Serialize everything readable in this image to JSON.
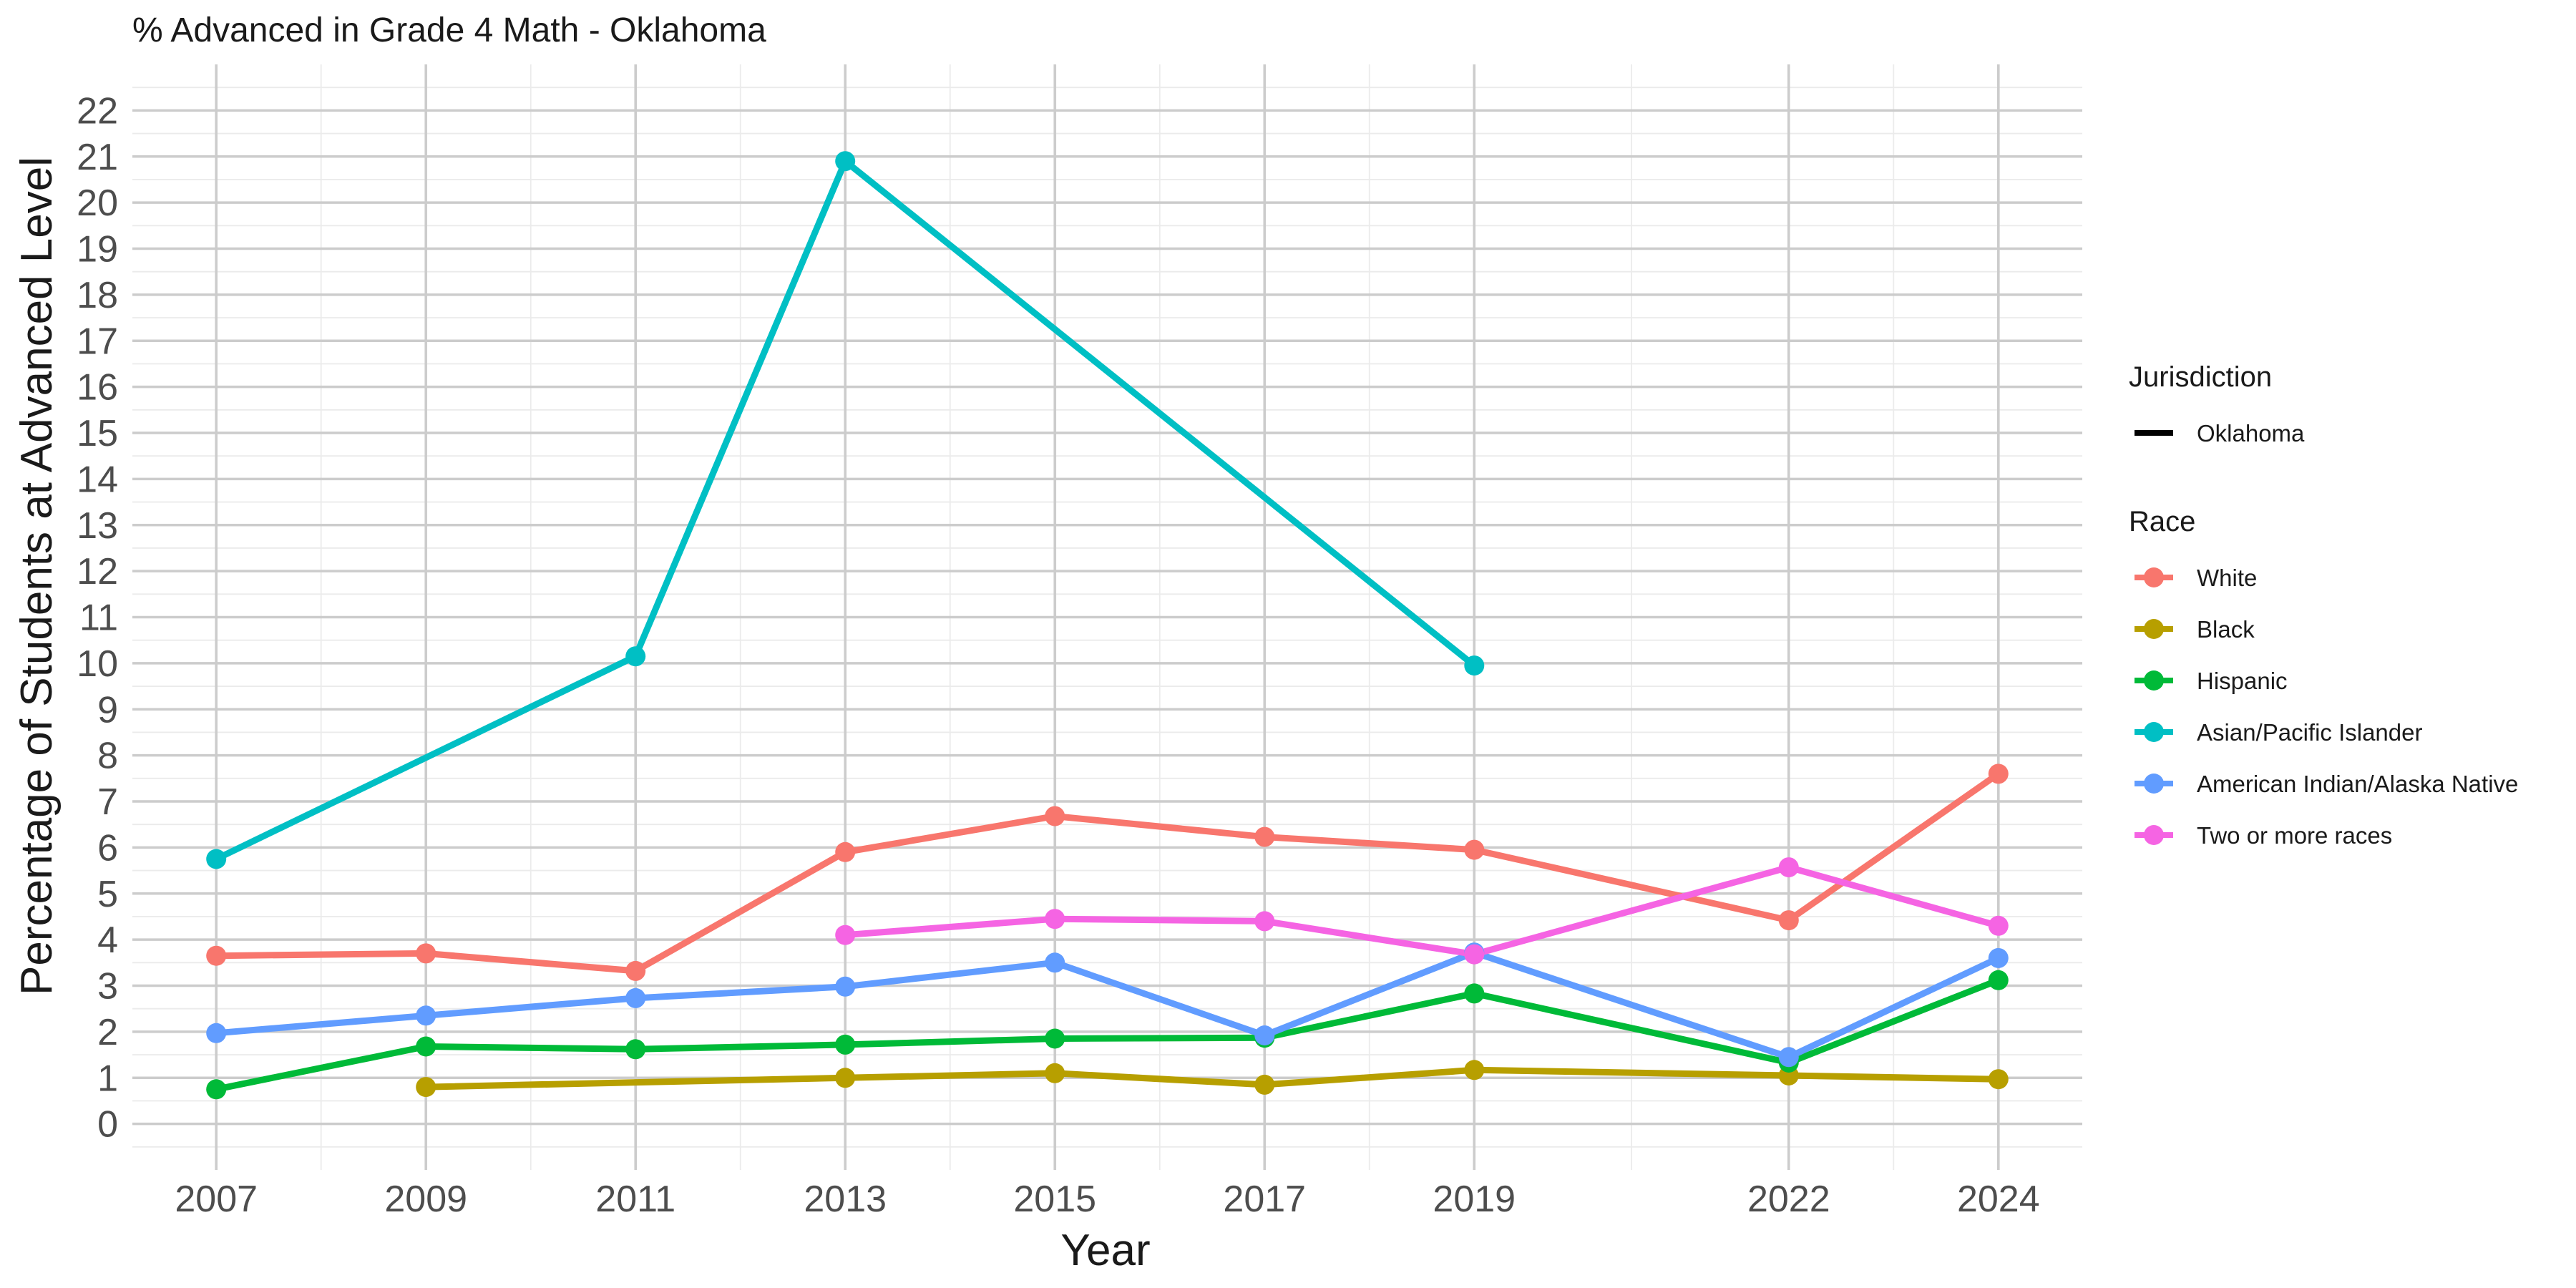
{
  "chart_data": {
    "type": "line",
    "title": "% Advanced in Grade 4 Math - Oklahoma",
    "xlabel": "Year",
    "ylabel": "Percentage of Students at Advanced Level",
    "x": [
      2007,
      2009,
      2011,
      2013,
      2015,
      2017,
      2019,
      2022,
      2024
    ],
    "xlim": [
      2006.2,
      2024.8
    ],
    "ylim": [
      -1.0,
      23.0
    ],
    "y_ticks": [
      0,
      1,
      2,
      3,
      4,
      5,
      6,
      7,
      8,
      9,
      10,
      11,
      12,
      13,
      14,
      15,
      16,
      17,
      18,
      19,
      20,
      21,
      22
    ],
    "x_ticks": [
      2007,
      2009,
      2011,
      2013,
      2015,
      2017,
      2019,
      2022,
      2024
    ],
    "grid": true,
    "legend_position": "right",
    "legends": [
      {
        "title": "Jurisdiction",
        "entries": [
          {
            "label": "Oklahoma",
            "color": "#000000",
            "kind": "line"
          }
        ]
      },
      {
        "title": "Race",
        "entries": [
          {
            "label": "White",
            "color": "#F8766D",
            "kind": "line-point"
          },
          {
            "label": "Black",
            "color": "#B79F00",
            "kind": "line-point"
          },
          {
            "label": "Hispanic",
            "color": "#00BA38",
            "kind": "line-point"
          },
          {
            "label": "Asian/Pacific Islander",
            "color": "#00BFC4",
            "kind": "line-point"
          },
          {
            "label": "American Indian/Alaska Native",
            "color": "#619CFF",
            "kind": "line-point"
          },
          {
            "label": "Two or more races",
            "color": "#F564E3",
            "kind": "line-point"
          }
        ]
      }
    ],
    "series": [
      {
        "name": "White",
        "color": "#F8766D",
        "points": [
          [
            2007,
            3.65
          ],
          [
            2009,
            3.7
          ],
          [
            2011,
            3.32
          ],
          [
            2013,
            5.9
          ],
          [
            2015,
            6.68
          ],
          [
            2017,
            6.23
          ],
          [
            2019,
            5.95
          ],
          [
            2022,
            4.42
          ],
          [
            2024,
            7.6
          ]
        ]
      },
      {
        "name": "Black",
        "color": "#B79F00",
        "points": [
          [
            2009,
            0.8
          ],
          [
            2013,
            1.0
          ],
          [
            2015,
            1.1
          ],
          [
            2017,
            0.85
          ],
          [
            2019,
            1.17
          ],
          [
            2022,
            1.05
          ],
          [
            2024,
            0.97
          ]
        ]
      },
      {
        "name": "Hispanic",
        "color": "#00BA38",
        "points": [
          [
            2007,
            0.75
          ],
          [
            2009,
            1.68
          ],
          [
            2011,
            1.62
          ],
          [
            2013,
            1.72
          ],
          [
            2015,
            1.85
          ],
          [
            2017,
            1.87
          ],
          [
            2019,
            2.83
          ],
          [
            2022,
            1.33
          ],
          [
            2024,
            3.12
          ]
        ]
      },
      {
        "name": "Asian/Pacific Islander",
        "color": "#00BFC4",
        "points": [
          [
            2007,
            5.75
          ],
          [
            2011,
            10.15
          ],
          [
            2013,
            20.9
          ],
          [
            2019,
            9.95
          ]
        ]
      },
      {
        "name": "American Indian/Alaska Native",
        "color": "#619CFF",
        "points": [
          [
            2007,
            1.97
          ],
          [
            2009,
            2.35
          ],
          [
            2011,
            2.73
          ],
          [
            2013,
            2.98
          ],
          [
            2015,
            3.5
          ],
          [
            2017,
            1.92
          ],
          [
            2019,
            3.72
          ],
          [
            2022,
            1.45
          ],
          [
            2024,
            3.6
          ]
        ]
      },
      {
        "name": "Two or more races",
        "color": "#F564E3",
        "points": [
          [
            2013,
            4.1
          ],
          [
            2015,
            4.45
          ],
          [
            2017,
            4.4
          ],
          [
            2019,
            3.68
          ],
          [
            2022,
            5.57
          ],
          [
            2024,
            4.3
          ]
        ]
      }
    ]
  }
}
